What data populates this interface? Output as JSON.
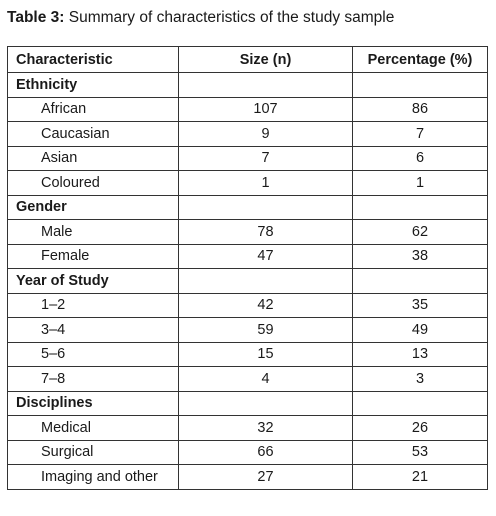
{
  "caption": {
    "label": "Table 3:",
    "text": "Summary of characteristics of the study sample"
  },
  "table": {
    "headers": [
      "Characteristic",
      "Size (n)",
      "Percentage (%)"
    ],
    "groups": [
      {
        "label": "Ethnicity",
        "rows": [
          {
            "label": "African",
            "size": "107",
            "percentage": "86"
          },
          {
            "label": "Caucasian",
            "size": "9",
            "percentage": "7"
          },
          {
            "label": "Asian",
            "size": "7",
            "percentage": "6"
          },
          {
            "label": "Coloured",
            "size": "1",
            "percentage": "1"
          }
        ]
      },
      {
        "label": "Gender",
        "rows": [
          {
            "label": "Male",
            "size": "78",
            "percentage": "62"
          },
          {
            "label": "Female",
            "size": "47",
            "percentage": "38"
          }
        ]
      },
      {
        "label": "Year of Study",
        "rows": [
          {
            "label": "1–2",
            "size": "42",
            "percentage": "35"
          },
          {
            "label": "3–4",
            "size": "59",
            "percentage": "49"
          },
          {
            "label": "5–6",
            "size": "15",
            "percentage": "13"
          },
          {
            "label": "7–8",
            "size": "4",
            "percentage": "3"
          }
        ]
      },
      {
        "label": "Disciplines",
        "rows": [
          {
            "label": "Medical",
            "size": "32",
            "percentage": "26"
          },
          {
            "label": "Surgical",
            "size": "66",
            "percentage": "53"
          },
          {
            "label": "Imaging and other",
            "size": "27",
            "percentage": "21"
          }
        ]
      }
    ]
  }
}
